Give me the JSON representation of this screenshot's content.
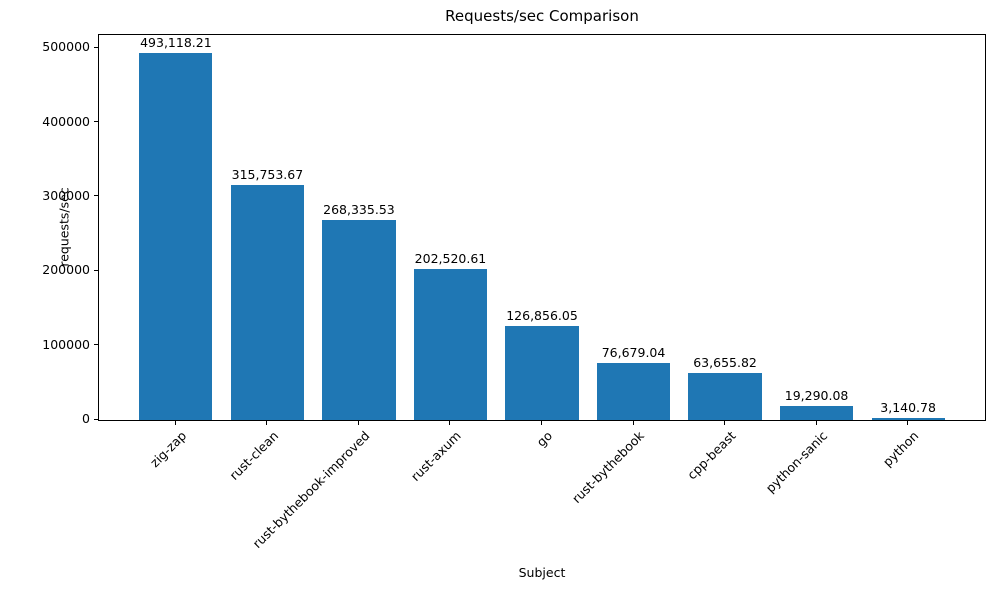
{
  "figure": {
    "background": "#ffffff"
  },
  "chart_data": {
    "type": "bar",
    "title": "Requests/sec Comparison",
    "xlabel": "Subject",
    "ylabel": "requests/sec",
    "categories": [
      "zig-zap",
      "rust-clean",
      "rust-bythebook-improved",
      "rust-axum",
      "go",
      "rust-bythebook",
      "cpp-beast",
      "python-sanic",
      "python"
    ],
    "values": [
      493118.21,
      315753.67,
      268335.53,
      202520.61,
      126856.05,
      76679.04,
      63655.82,
      19290.08,
      3140.78
    ],
    "value_labels": [
      "493,118.21",
      "315,753.67",
      "268,335.53",
      "202,520.61",
      "126,856.05",
      "76,679.04",
      "63,655.82",
      "19,290.08",
      "3,140.78"
    ],
    "yticks": [
      0,
      100000,
      200000,
      300000,
      400000,
      500000
    ],
    "ytick_labels": [
      "0",
      "100000",
      "200000",
      "300000",
      "400000",
      "500000"
    ],
    "ylim": [
      0,
      517774
    ],
    "bar_color": "#1f77b4",
    "axis_color": "#000000",
    "text_color": "#000000",
    "grid": false,
    "legend": "none",
    "x_tick_rotation": 45
  }
}
